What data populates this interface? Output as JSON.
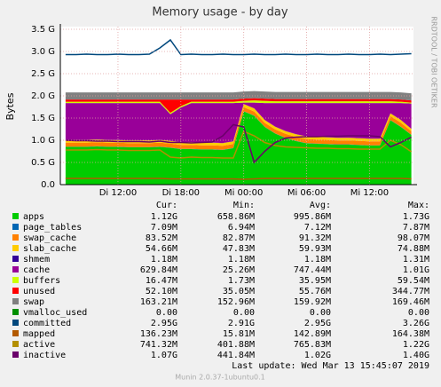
{
  "chart_data": {
    "type": "area",
    "title": "Memory usage - by day",
    "y_label": "Bytes",
    "side_text": "RRDTOOL / TOBI OETIKER",
    "x": [
      7,
      8,
      9,
      10,
      11,
      12,
      13,
      14,
      15,
      16,
      17,
      18,
      19,
      20,
      21,
      22,
      23,
      24,
      25,
      26,
      27,
      28,
      29,
      30,
      31,
      32,
      33,
      34,
      35,
      36,
      37,
      38,
      39,
      40
    ],
    "xlim": [
      6.5,
      40.2
    ],
    "xticks": [
      {
        "value": 12,
        "label": "Di 12:00"
      },
      {
        "value": 18,
        "label": "Di 18:00"
      },
      {
        "value": 24,
        "label": "Mi 00:00"
      },
      {
        "value": 30,
        "label": "Mi 06:00"
      },
      {
        "value": 36,
        "label": "Mi 12:00"
      }
    ],
    "ylim": [
      0,
      3.5
    ],
    "yticks": [
      {
        "value": 0,
        "label": "0.0"
      },
      {
        "value": 0.5,
        "label": "0.5 G"
      },
      {
        "value": 1,
        "label": "1.0 G"
      },
      {
        "value": 1.5,
        "label": "1.5 G"
      },
      {
        "value": 2,
        "label": "2.0 G"
      },
      {
        "value": 2.5,
        "label": "2.5 G"
      },
      {
        "value": 3,
        "label": "3.0 G"
      },
      {
        "value": 3.5,
        "label": "3.5 G"
      }
    ],
    "grid": true,
    "legend_columns": [
      "Cur:",
      "Min:",
      "Avg:",
      "Max:"
    ],
    "series": [
      {
        "name": "apps",
        "color": "#00cc00",
        "draw": "stack",
        "stats": [
          "1.12G",
          "658.86M",
          "995.86M",
          "1.73G"
        ],
        "values": [
          0.85,
          0.85,
          0.85,
          0.86,
          0.85,
          0.85,
          0.84,
          0.84,
          0.84,
          0.85,
          0.83,
          0.8,
          0.8,
          0.79,
          0.79,
          0.78,
          0.82,
          1.65,
          1.55,
          1.3,
          1.15,
          1.05,
          0.98,
          0.93,
          0.92,
          0.91,
          0.9,
          0.9,
          0.89,
          0.88,
          0.88,
          1.45,
          1.3,
          1.12
        ]
      },
      {
        "name": "page_tables",
        "color": "#0066b3",
        "draw": "stack",
        "stats": [
          "7.09M",
          "6.94M",
          "7.12M",
          "7.87M"
        ],
        "values": [
          0.007,
          0.007,
          0.007,
          0.007,
          0.007,
          0.007,
          0.007,
          0.007,
          0.007,
          0.007,
          0.007,
          0.007,
          0.007,
          0.007,
          0.007,
          0.007,
          0.007,
          0.007,
          0.007,
          0.007,
          0.007,
          0.007,
          0.007,
          0.007,
          0.007,
          0.007,
          0.007,
          0.007,
          0.007,
          0.007,
          0.007,
          0.007,
          0.007,
          0.007
        ]
      },
      {
        "name": "swap_cache",
        "color": "#ff8000",
        "draw": "stack",
        "stats": [
          "83.52M",
          "82.87M",
          "91.32M",
          "98.07M"
        ],
        "values": [
          0.09,
          0.09,
          0.09,
          0.09,
          0.09,
          0.09,
          0.09,
          0.09,
          0.09,
          0.09,
          0.09,
          0.09,
          0.09,
          0.09,
          0.09,
          0.09,
          0.09,
          0.09,
          0.09,
          0.09,
          0.09,
          0.09,
          0.09,
          0.09,
          0.09,
          0.09,
          0.09,
          0.09,
          0.09,
          0.09,
          0.09,
          0.09,
          0.09,
          0.08
        ]
      },
      {
        "name": "slab_cache",
        "color": "#ffcc00",
        "draw": "stack",
        "stats": [
          "54.66M",
          "47.83M",
          "59.93M",
          "74.88M"
        ],
        "values": [
          0.06,
          0.06,
          0.06,
          0.06,
          0.06,
          0.06,
          0.06,
          0.06,
          0.06,
          0.06,
          0.06,
          0.06,
          0.06,
          0.06,
          0.06,
          0.06,
          0.06,
          0.07,
          0.07,
          0.06,
          0.06,
          0.06,
          0.06,
          0.06,
          0.06,
          0.06,
          0.06,
          0.06,
          0.06,
          0.06,
          0.06,
          0.06,
          0.06,
          0.05
        ]
      },
      {
        "name": "shmem",
        "color": "#330099",
        "draw": "stack",
        "stats": [
          "1.18M",
          "1.18M",
          "1.18M",
          "1.31M"
        ],
        "values": [
          0.001,
          0.001,
          0.001,
          0.001,
          0.001,
          0.001,
          0.001,
          0.001,
          0.001,
          0.001,
          0.001,
          0.001,
          0.001,
          0.001,
          0.001,
          0.001,
          0.001,
          0.001,
          0.001,
          0.001,
          0.001,
          0.001,
          0.001,
          0.001,
          0.001,
          0.001,
          0.001,
          0.001,
          0.001,
          0.001,
          0.001,
          0.001,
          0.001,
          0.001
        ]
      },
      {
        "name": "cache",
        "color": "#990099",
        "draw": "stack",
        "stats": [
          "629.84M",
          "25.26M",
          "747.44M",
          "1.01G"
        ],
        "values": [
          0.83,
          0.83,
          0.83,
          0.82,
          0.83,
          0.83,
          0.84,
          0.84,
          0.84,
          0.83,
          0.6,
          0.78,
          0.88,
          0.89,
          0.89,
          0.9,
          0.86,
          0.03,
          0.13,
          0.38,
          0.53,
          0.63,
          0.7,
          0.75,
          0.76,
          0.77,
          0.78,
          0.78,
          0.79,
          0.8,
          0.8,
          0.23,
          0.38,
          0.57
        ]
      },
      {
        "name": "buffers",
        "color": "#ccff00",
        "draw": "stack",
        "stats": [
          "16.47M",
          "1.73M",
          "35.95M",
          "59.54M"
        ],
        "values": [
          0.03,
          0.03,
          0.03,
          0.03,
          0.03,
          0.03,
          0.03,
          0.03,
          0.03,
          0.03,
          0.03,
          0.03,
          0.03,
          0.03,
          0.03,
          0.03,
          0.03,
          0.04,
          0.05,
          0.05,
          0.04,
          0.04,
          0.04,
          0.04,
          0.04,
          0.04,
          0.04,
          0.04,
          0.04,
          0.04,
          0.04,
          0.04,
          0.03,
          0.02
        ]
      },
      {
        "name": "unused",
        "color": "#ff0000",
        "draw": "stack",
        "stats": [
          "52.10M",
          "35.05M",
          "55.76M",
          "344.77M"
        ],
        "values": [
          0.05,
          0.05,
          0.05,
          0.05,
          0.05,
          0.05,
          0.05,
          0.05,
          0.05,
          0.05,
          0.3,
          0.15,
          0.05,
          0.05,
          0.05,
          0.05,
          0.05,
          0.05,
          0.05,
          0.05,
          0.05,
          0.05,
          0.05,
          0.05,
          0.05,
          0.05,
          0.05,
          0.05,
          0.05,
          0.05,
          0.05,
          0.05,
          0.05,
          0.05
        ]
      },
      {
        "name": "swap",
        "color": "#808080",
        "draw": "stack",
        "stats": [
          "163.21M",
          "152.96M",
          "159.92M",
          "169.46M"
        ],
        "values": [
          0.16,
          0.16,
          0.16,
          0.16,
          0.16,
          0.16,
          0.16,
          0.16,
          0.16,
          0.16,
          0.16,
          0.16,
          0.16,
          0.16,
          0.16,
          0.16,
          0.16,
          0.16,
          0.16,
          0.16,
          0.16,
          0.16,
          0.16,
          0.16,
          0.16,
          0.16,
          0.16,
          0.16,
          0.16,
          0.16,
          0.16,
          0.16,
          0.16,
          0.16
        ]
      },
      {
        "name": "vmalloc_used",
        "color": "#008f00",
        "draw": "stack",
        "stats": [
          "0.00",
          "0.00",
          "0.00",
          "0.00"
        ],
        "values": [
          0,
          0,
          0,
          0,
          0,
          0,
          0,
          0,
          0,
          0,
          0,
          0,
          0,
          0,
          0,
          0,
          0,
          0,
          0,
          0,
          0,
          0,
          0,
          0,
          0,
          0,
          0,
          0,
          0,
          0,
          0,
          0,
          0,
          0
        ]
      },
      {
        "name": "committed",
        "color": "#00487d",
        "draw": "line",
        "stats": [
          "2.95G",
          "2.91G",
          "2.95G",
          "3.26G"
        ],
        "values": [
          2.93,
          2.93,
          2.94,
          2.93,
          2.93,
          2.94,
          2.93,
          2.93,
          2.94,
          3.08,
          3.26,
          2.93,
          2.94,
          2.93,
          2.93,
          2.94,
          2.93,
          2.93,
          2.94,
          2.93,
          2.93,
          2.94,
          2.93,
          2.93,
          2.94,
          2.93,
          2.93,
          2.94,
          2.93,
          2.93,
          2.94,
          2.93,
          2.94,
          2.95
        ]
      },
      {
        "name": "mapped",
        "color": "#b35a00",
        "draw": "line",
        "stats": [
          "136.23M",
          "15.81M",
          "142.89M",
          "164.38M"
        ],
        "values": [
          0.14,
          0.14,
          0.14,
          0.14,
          0.14,
          0.14,
          0.14,
          0.14,
          0.14,
          0.14,
          0.13,
          0.13,
          0.13,
          0.13,
          0.13,
          0.13,
          0.13,
          0.12,
          0.13,
          0.14,
          0.14,
          0.14,
          0.14,
          0.14,
          0.14,
          0.14,
          0.14,
          0.14,
          0.14,
          0.14,
          0.14,
          0.14,
          0.14,
          0.13
        ]
      },
      {
        "name": "active",
        "color": "#b38f00",
        "draw": "line",
        "stats": [
          "741.32M",
          "401.88M",
          "765.83M",
          "1.22G"
        ],
        "values": [
          0.78,
          0.78,
          0.78,
          0.79,
          0.78,
          0.78,
          0.77,
          0.77,
          0.77,
          0.78,
          0.62,
          0.6,
          0.62,
          0.61,
          0.61,
          0.6,
          0.6,
          1.2,
          1.1,
          0.95,
          0.88,
          0.85,
          0.84,
          0.83,
          0.82,
          0.82,
          0.81,
          0.81,
          0.8,
          0.8,
          0.8,
          1.0,
          0.9,
          0.74
        ]
      },
      {
        "name": "inactive",
        "color": "#6b006b",
        "draw": "line",
        "stats": [
          "1.07G",
          "441.84M",
          "1.02G",
          "1.40G"
        ],
        "values": [
          1.0,
          0.99,
          0.99,
          0.98,
          0.98,
          0.97,
          0.97,
          0.97,
          0.96,
          0.98,
          0.95,
          0.95,
          0.94,
          0.95,
          0.96,
          1.1,
          1.35,
          1.3,
          0.5,
          0.75,
          0.95,
          1.05,
          1.07,
          1.08,
          1.08,
          1.09,
          1.09,
          1.1,
          1.1,
          1.1,
          1.08,
          0.85,
          0.95,
          1.07
        ]
      }
    ],
    "last_update": "Last update: Wed Mar 13 15:45:07 2019",
    "footer": "Munin 2.0.37-1ubuntu0.1"
  }
}
